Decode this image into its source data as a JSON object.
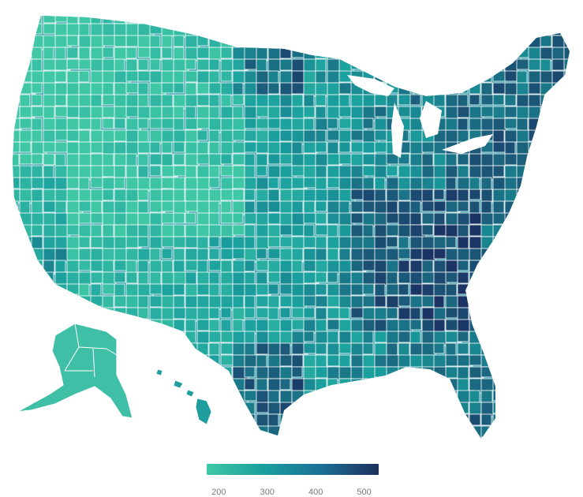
{
  "legend": {
    "ticks": [
      "200",
      "300",
      "400",
      "500"
    ],
    "tick_values": [
      200,
      300,
      400,
      500
    ],
    "range": [
      175,
      530
    ],
    "colors": [
      "#3fc7a6",
      "#1a9f9e",
      "#1b6f95",
      "#1c2f5c"
    ]
  },
  "colors": {
    "border": "#ffffff",
    "low": "#3fc7a6",
    "mid": "#1a9f9e",
    "high": "#1b3f6e"
  }
}
